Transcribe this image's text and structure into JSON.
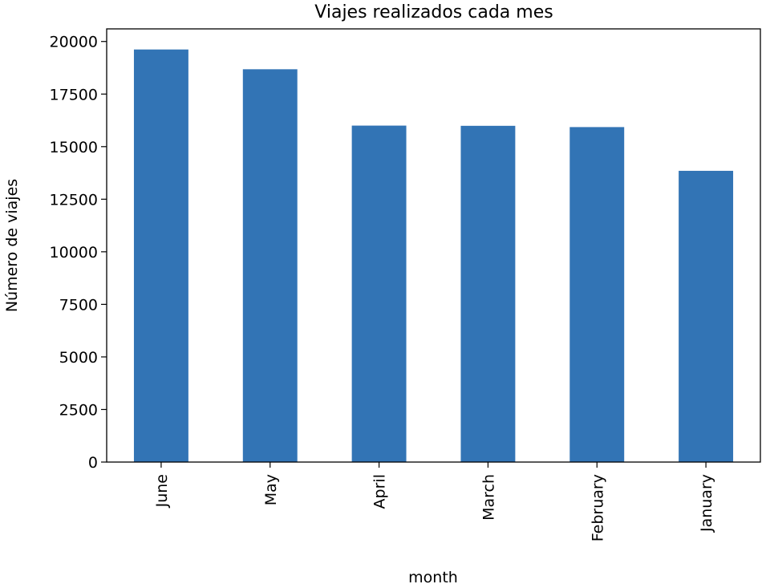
{
  "chart_data": {
    "type": "bar",
    "title": "Viajes realizados cada mes",
    "xlabel": "month",
    "ylabel": "Número de viajes",
    "categories": [
      "June",
      "May",
      "April",
      "March",
      "February",
      "January"
    ],
    "values": [
      19620,
      18680,
      16000,
      15990,
      15930,
      13850
    ],
    "ylim": [
      0,
      20600
    ],
    "yticks": [
      0,
      2500,
      5000,
      7500,
      10000,
      12500,
      15000,
      17500,
      20000
    ],
    "grid": false,
    "legend": "none",
    "bar_color": "#3274b5"
  }
}
